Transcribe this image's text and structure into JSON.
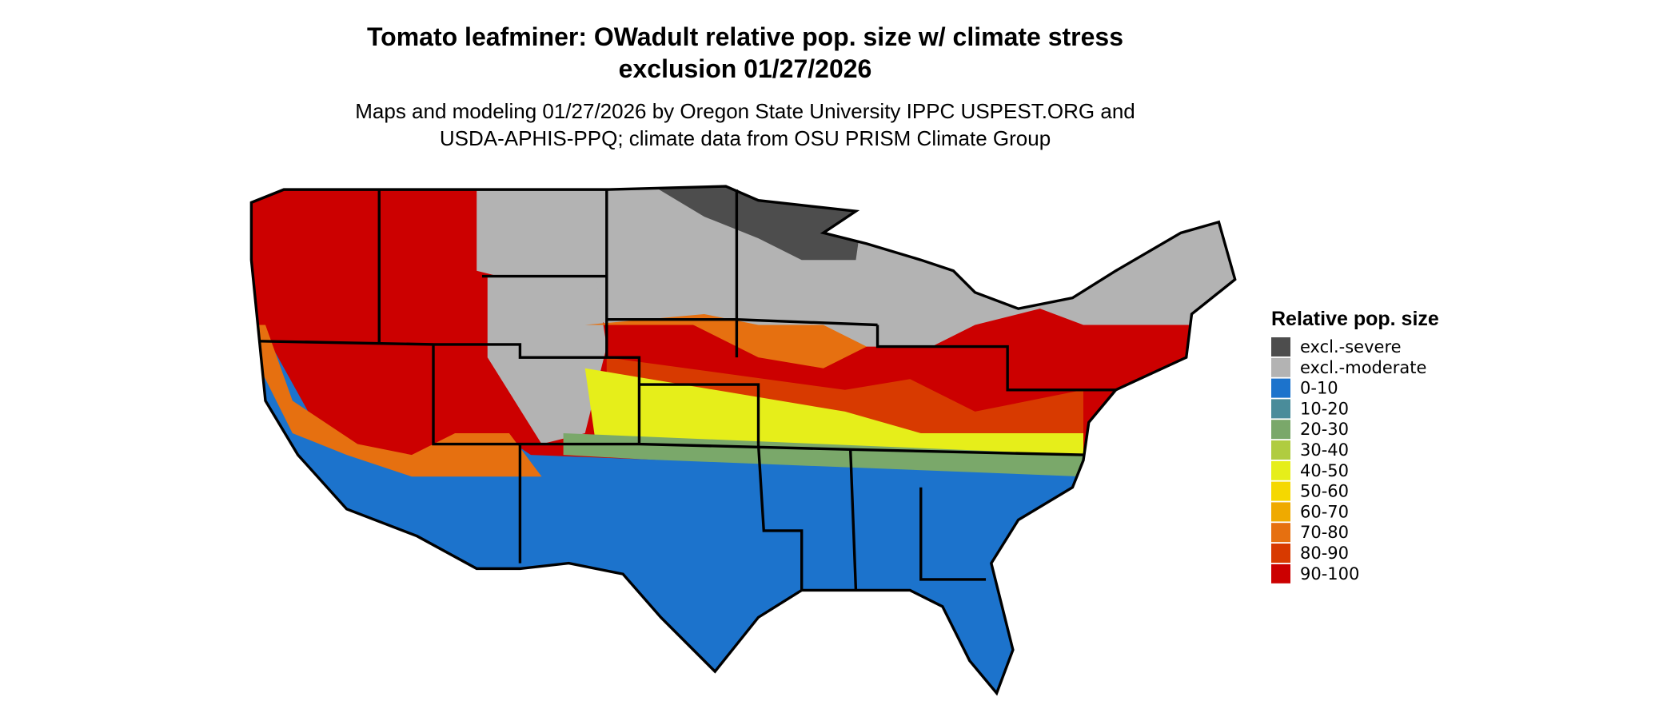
{
  "header": {
    "title_lines": [
      "Tomato leafminer: OWadult relative pop. size w/ climate stress",
      "exclusion 01/27/2026"
    ],
    "subtitle_lines": [
      "Maps and modeling 01/27/2026 by Oregon State University IPPC USPEST.ORG and",
      "USDA-APHIS-PPQ; climate data from OSU PRISM Climate Group"
    ]
  },
  "legend": {
    "title": "Relative pop. size",
    "items": [
      {
        "label": "excl.-severe",
        "color": "#4d4d4d"
      },
      {
        "label": "excl.-moderate",
        "color": "#b3b3b3"
      },
      {
        "label": "0-10",
        "color": "#1c73cc"
      },
      {
        "label": "10-20",
        "color": "#4a8c9a"
      },
      {
        "label": "20-30",
        "color": "#7aa86a"
      },
      {
        "label": "30-40",
        "color": "#b0cc40"
      },
      {
        "label": "40-50",
        "color": "#e6ee1a"
      },
      {
        "label": "50-60",
        "color": "#f5d800"
      },
      {
        "label": "60-70",
        "color": "#efaa00"
      },
      {
        "label": "70-80",
        "color": "#e67010"
      },
      {
        "label": "80-90",
        "color": "#d83a00"
      },
      {
        "label": "90-100",
        "color": "#cc0000"
      }
    ]
  }
}
